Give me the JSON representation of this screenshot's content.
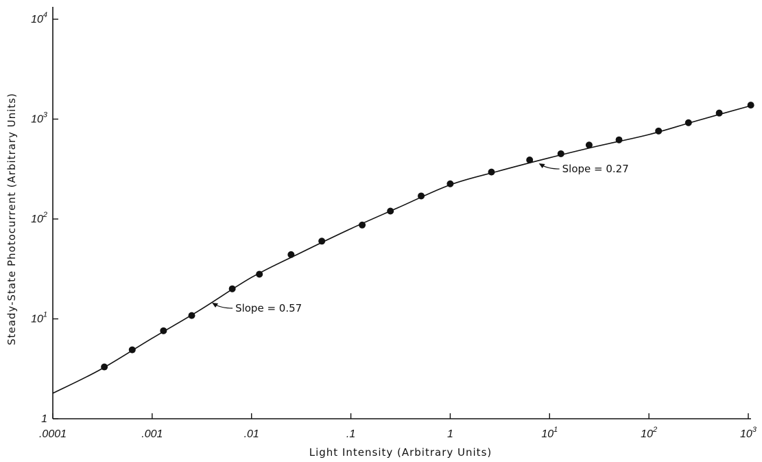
{
  "chart_data": {
    "type": "scatter",
    "title": "",
    "xlabel": "Light Intensity (Arbitrary Units)",
    "ylabel": "Steady-State Photocurrent (Arbitrary Units)",
    "x_scale": "log",
    "y_scale": "log",
    "xlim": [
      0.0001,
      1000
    ],
    "ylim": [
      1,
      10000
    ],
    "grid": false,
    "legend": "none",
    "x_ticks": [
      {
        "value": 0.0001,
        "base": ".0001",
        "exp": ""
      },
      {
        "value": 0.001,
        "base": ".001",
        "exp": ""
      },
      {
        "value": 0.01,
        "base": ".01",
        "exp": ""
      },
      {
        "value": 0.1,
        "base": ".1",
        "exp": ""
      },
      {
        "value": 1,
        "base": "1",
        "exp": ""
      },
      {
        "value": 10,
        "base": "10",
        "exp": "1"
      },
      {
        "value": 100,
        "base": "10",
        "exp": "2"
      },
      {
        "value": 1000,
        "base": "10",
        "exp": "3"
      }
    ],
    "y_ticks": [
      {
        "value": 1,
        "base": "1",
        "exp": ""
      },
      {
        "value": 10,
        "base": "10",
        "exp": "1"
      },
      {
        "value": 100,
        "base": "10",
        "exp": "2"
      },
      {
        "value": 1000,
        "base": "10",
        "exp": "3"
      },
      {
        "value": 10000,
        "base": "10",
        "exp": "4"
      }
    ],
    "series": [
      {
        "type": "scatter",
        "x": [
          0.00033,
          0.00063,
          0.0013,
          0.0025,
          0.0064,
          0.012,
          0.025,
          0.051,
          0.13,
          0.25,
          0.51,
          1.0,
          2.6,
          6.3,
          13,
          25,
          50,
          125,
          250,
          510,
          1060
        ],
        "y": [
          3.3,
          4.9,
          7.6,
          10.8,
          20,
          28,
          44,
          60,
          87,
          120,
          170,
          225,
          295,
          390,
          450,
          550,
          620,
          760,
          920,
          1150,
          1380
        ]
      },
      {
        "type": "line",
        "x": [
          0.0001,
          0.0003,
          0.001,
          0.003,
          0.01,
          0.03,
          0.1,
          0.3,
          1,
          3,
          10,
          30,
          100,
          300,
          1000
        ],
        "y": [
          1.8,
          3.1,
          6.4,
          12.2,
          26,
          45,
          80,
          130,
          220,
          300,
          410,
          535,
          700,
          960,
          1340
        ]
      }
    ],
    "annotations": [
      {
        "text": "Slope = 0.57",
        "target_x": 0.004,
        "target_y": 14.5
      },
      {
        "text": "Slope = 0.27",
        "target_x": 7.8,
        "target_y": 360
      }
    ]
  }
}
